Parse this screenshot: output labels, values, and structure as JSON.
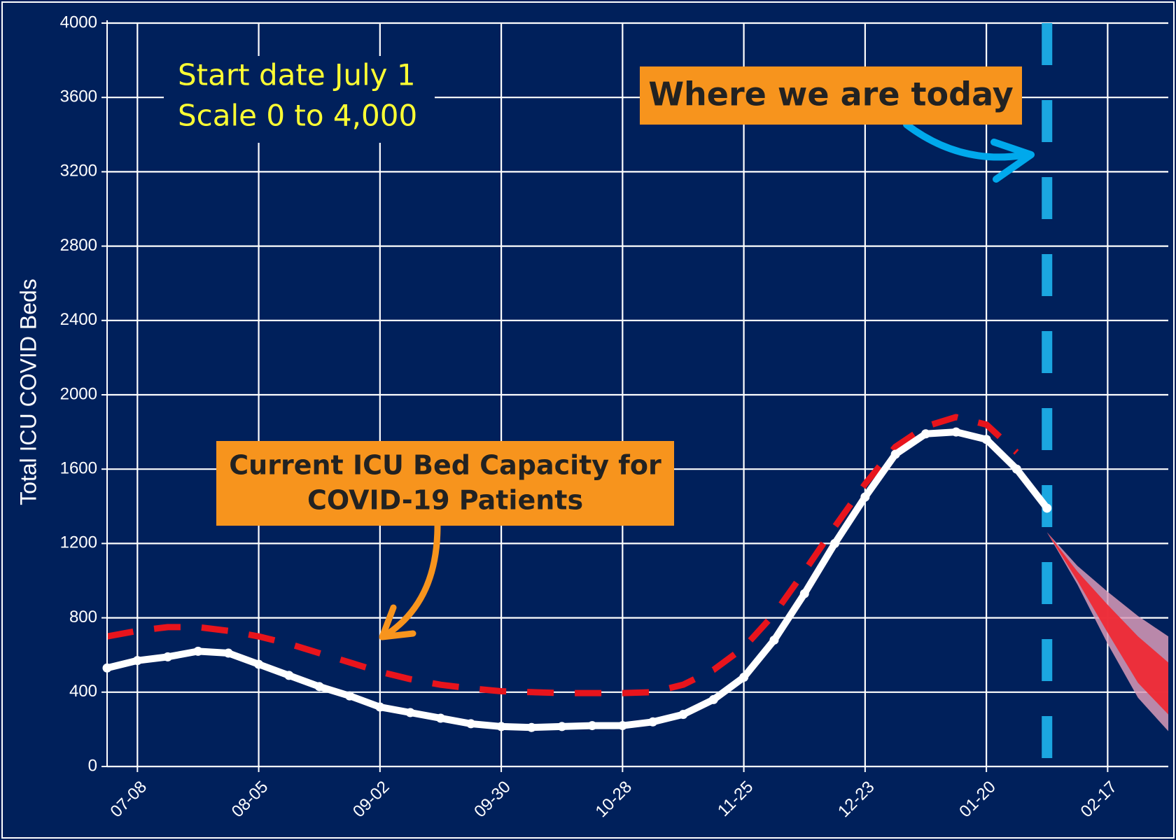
{
  "chart_data": {
    "type": "line",
    "y_label": "Total ICU COVID Beds",
    "categories": [
      "07-01",
      "07-08",
      "07-15",
      "07-22",
      "07-29",
      "08-05",
      "08-12",
      "08-19",
      "08-26",
      "09-02",
      "09-09",
      "09-16",
      "09-23",
      "09-30",
      "10-07",
      "10-14",
      "10-21",
      "10-28",
      "11-04",
      "11-11",
      "11-18",
      "11-25",
      "12-02",
      "12-09",
      "12-16",
      "12-23",
      "12-30",
      "01-06",
      "01-13",
      "01-20",
      "01-27",
      "02-03",
      "02-10",
      "02-17",
      "02-24",
      "03-03"
    ],
    "xticks": [
      "07-08",
      "08-05",
      "09-02",
      "09-30",
      "10-28",
      "11-25",
      "12-23",
      "01-20",
      "02-17"
    ],
    "ylim": [
      0,
      4000
    ],
    "yticks": [
      0,
      400,
      800,
      1200,
      1600,
      2000,
      2400,
      2800,
      3200,
      3600,
      4000
    ],
    "grid": true,
    "series": [
      {
        "name": "Total ICU COVID Beds",
        "color": "#ffffff",
        "values": [
          530,
          570,
          590,
          620,
          610,
          550,
          490,
          430,
          380,
          320,
          290,
          260,
          230,
          215,
          210,
          215,
          220,
          220,
          240,
          280,
          360,
          480,
          680,
          930,
          1200,
          1450,
          1680,
          1790,
          1800,
          1760,
          1600,
          1390,
          null,
          null,
          null,
          null
        ]
      },
      {
        "name": "Current ICU Bed Capacity for COVID-19 Patients",
        "color": "#e8141c",
        "dashed": true,
        "values": [
          700,
          730,
          750,
          750,
          730,
          700,
          660,
          610,
          560,
          510,
          470,
          440,
          420,
          405,
          400,
          395,
          395,
          395,
          400,
          440,
          520,
          640,
          820,
          1050,
          1290,
          1520,
          1720,
          1830,
          1880,
          1840,
          1690,
          null,
          null,
          null,
          null,
          null
        ]
      }
    ],
    "forecast": {
      "x": [
        "02-03",
        "02-10",
        "02-17",
        "02-24",
        "03-03"
      ],
      "bands": [
        {
          "color": "#d99bb8",
          "upper": [
            1260,
            1080,
            940,
            810,
            700
          ],
          "lower": [
            1260,
            980,
            660,
            370,
            190
          ]
        },
        {
          "color": "#ee2a35",
          "upper": [
            1260,
            1050,
            870,
            700,
            560
          ],
          "lower": [
            1260,
            1000,
            720,
            450,
            280
          ]
        }
      ]
    },
    "today": {
      "x": "02-03",
      "color": "#1ba6e0",
      "label": "Where we are today"
    },
    "annotations": {
      "start_note": [
        "Start date July 1",
        "Scale 0 to 4,000"
      ],
      "capacity_note": [
        "Current ICU Bed Capacity for",
        "COVID-19 Patients"
      ]
    }
  }
}
